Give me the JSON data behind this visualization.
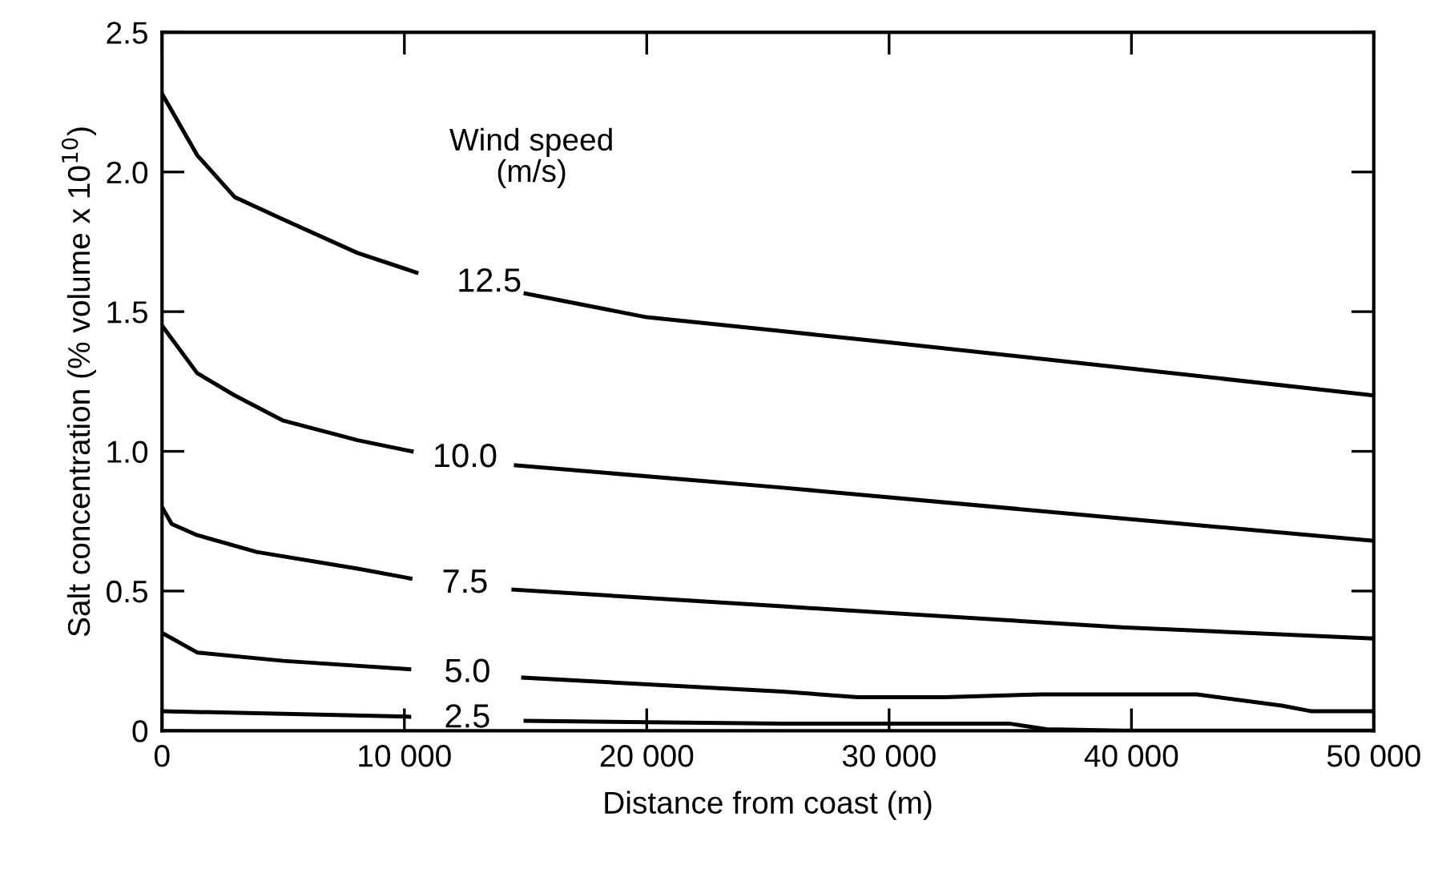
{
  "chart_data": {
    "type": "line",
    "xlabel": "Distance from coast (m)",
    "ylabel": "Salt concentration (% volume x 10$^{10}$)",
    "xlim": [
      0,
      50000
    ],
    "ylim": [
      0,
      2.5
    ],
    "xticks": [
      0,
      {
        "value": 10000,
        "label": "10 000"
      },
      {
        "value": 20000,
        "label": "20 000"
      },
      {
        "value": 30000,
        "label": "30 000"
      },
      {
        "value": 40000,
        "label": "40 000"
      },
      {
        "value": 50000,
        "label": "50 000"
      }
    ],
    "yticks": [
      0,
      {
        "value": 0.5,
        "label": "0.5"
      },
      {
        "value": 1.0,
        "label": "1.0"
      },
      {
        "value": 1.5,
        "label": "1.5"
      },
      {
        "value": 2.0,
        "label": "2.0"
      },
      {
        "value": 2.5,
        "label": "2.5"
      }
    ],
    "grid": false,
    "legend": false,
    "marker": "none",
    "line_style": "solid",
    "annotations": [
      "Wind speed\n(m/s)"
    ],
    "series": [
      {
        "name": "12.5",
        "color": "#000000",
        "x": [
          0,
          1450,
          3000,
          5000,
          8070,
          10500,
          13500,
          15000,
          20000,
          25600,
          30000,
          39600,
          50000
        ],
        "values": [
          2.28,
          2.06,
          1.91,
          1.83,
          1.71,
          1.64,
          null,
          1.565,
          1.48,
          1.43,
          1.39,
          1.3,
          1.2
        ]
      },
      {
        "name": "10.0",
        "color": "#000000",
        "x": [
          0,
          1450,
          3000,
          5000,
          8070,
          10300,
          12500,
          14600,
          25600,
          39600,
          50000
        ],
        "values": [
          1.45,
          1.28,
          1.2,
          1.11,
          1.04,
          1.0,
          null,
          0.95,
          0.87,
          0.76,
          0.68
        ]
      },
      {
        "name": "7.5",
        "color": "#000000",
        "x": [
          0,
          400,
          1450,
          3900,
          8070,
          10250,
          12500,
          14500,
          25600,
          39600,
          50000
        ],
        "values": [
          0.8,
          0.74,
          0.7,
          0.64,
          0.58,
          0.545,
          null,
          0.505,
          0.445,
          0.37,
          0.33
        ]
      },
      {
        "name": "5.0",
        "color": "#000000",
        "x": [
          0,
          1450,
          5000,
          10200,
          12600,
          14900,
          25600,
          28700,
          32300,
          36300,
          42700,
          46200,
          47400,
          50000
        ],
        "values": [
          0.35,
          0.28,
          0.25,
          0.22,
          null,
          0.19,
          0.14,
          0.12,
          0.12,
          0.13,
          0.13,
          0.09,
          0.07,
          0.07
        ]
      },
      {
        "name": "2.5",
        "color": "#000000",
        "x": [
          0,
          10200,
          12600,
          15000,
          25600,
          35000,
          36500,
          39600,
          50000
        ],
        "values": [
          0.07,
          0.05,
          null,
          0.035,
          0.025,
          0.025,
          0.005,
          0,
          0
        ]
      }
    ]
  }
}
